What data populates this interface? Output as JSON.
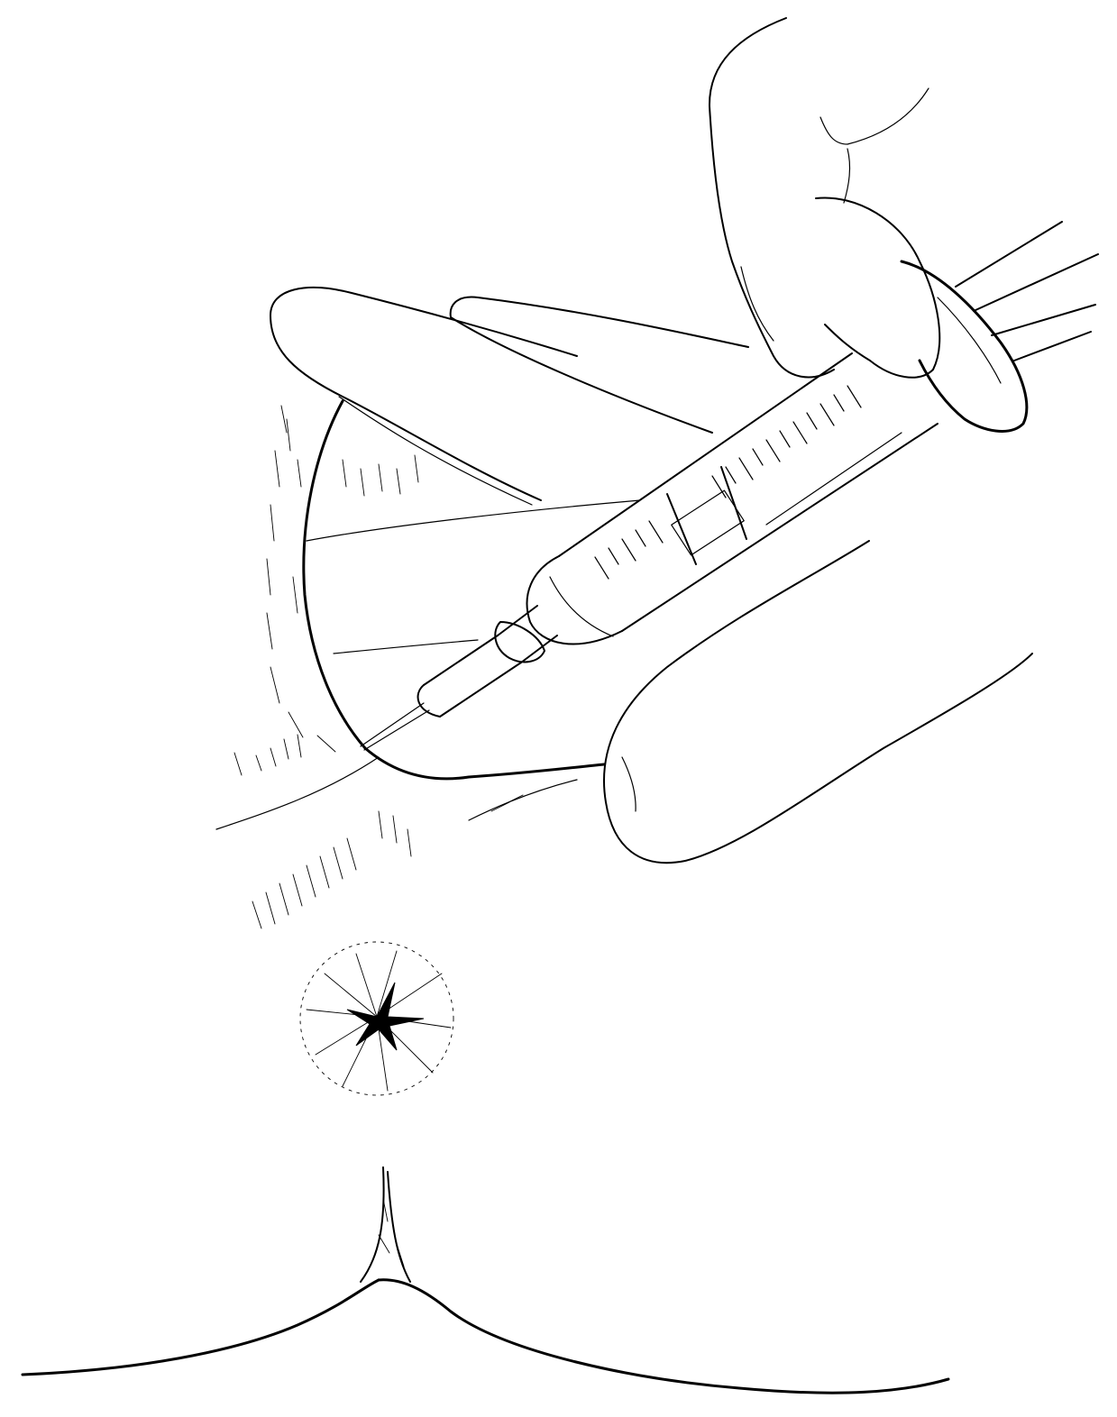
{
  "illustration": {
    "colors": {
      "ink": "#000000",
      "paper": "#ffffff"
    },
    "syringe_labels": {
      "barrel_label_top": "",
      "barrel_label_bottom": ""
    }
  }
}
